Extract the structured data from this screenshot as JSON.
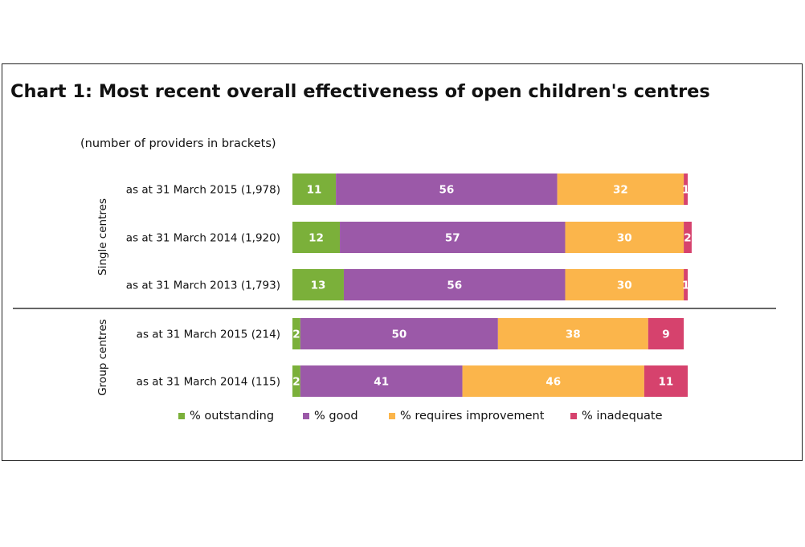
{
  "chart_data": {
    "type": "bar",
    "orientation": "horizontal",
    "stacked": true,
    "title": "Chart 1: Most recent overall effectiveness of open children's centres",
    "subtitle": "(number of providers in brackets)",
    "groups": [
      {
        "label": "Single centres",
        "categories": [
          "as at 31 March 2015 (1,978)",
          "as at 31 March 2014 (1,920)",
          "as at 31 March 2013 (1,793)"
        ]
      },
      {
        "label": "Group centres",
        "categories": [
          "as at 31 March 2015 (214)",
          "as at 31 March 2014 (115)"
        ]
      }
    ],
    "series": [
      {
        "name": "% outstanding",
        "color": "#7bb03a",
        "values": [
          11,
          12,
          13,
          2,
          2
        ]
      },
      {
        "name": "% good",
        "color": "#9b59a8",
        "values": [
          56,
          57,
          56,
          50,
          41
        ]
      },
      {
        "name": "% requires improvement",
        "color": "#fbb54b",
        "values": [
          32,
          30,
          30,
          38,
          46
        ]
      },
      {
        "name": "% inadequate",
        "color": "#d6426d",
        "values": [
          1,
          2,
          1,
          9,
          11
        ]
      }
    ],
    "xlim": [
      0,
      100
    ],
    "grid": false,
    "legend": "bottom"
  }
}
